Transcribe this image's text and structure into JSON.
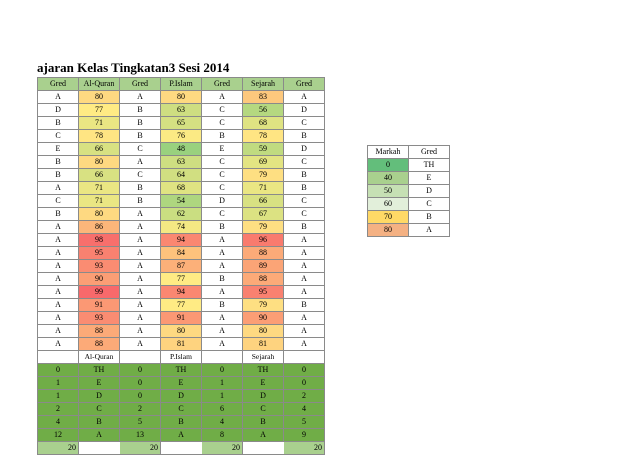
{
  "sheet": {
    "title": "ajaran Kelas Tingkatan3 Sesi 2014",
    "headers": [
      "Gred",
      "Al-Quran",
      "Gred",
      "P.Islam",
      "Gred",
      "Sejarah",
      "Gred"
    ],
    "rows": [
      [
        "A",
        "80",
        "A",
        "80",
        "A",
        "83",
        "A"
      ],
      [
        "D",
        "77",
        "B",
        "63",
        "C",
        "56",
        "D"
      ],
      [
        "B",
        "71",
        "B",
        "65",
        "C",
        "68",
        "C"
      ],
      [
        "C",
        "78",
        "B",
        "76",
        "B",
        "78",
        "B"
      ],
      [
        "E",
        "66",
        "C",
        "48",
        "E",
        "59",
        "D"
      ],
      [
        "B",
        "80",
        "A",
        "63",
        "C",
        "69",
        "C"
      ],
      [
        "B",
        "66",
        "C",
        "64",
        "C",
        "79",
        "B"
      ],
      [
        "A",
        "71",
        "B",
        "68",
        "C",
        "71",
        "B"
      ],
      [
        "C",
        "71",
        "B",
        "54",
        "D",
        "66",
        "C"
      ],
      [
        "B",
        "80",
        "A",
        "62",
        "C",
        "67",
        "C"
      ],
      [
        "A",
        "86",
        "A",
        "74",
        "B",
        "79",
        "B"
      ],
      [
        "A",
        "98",
        "A",
        "94",
        "A",
        "96",
        "A"
      ],
      [
        "A",
        "95",
        "A",
        "84",
        "A",
        "88",
        "A"
      ],
      [
        "A",
        "93",
        "A",
        "87",
        "A",
        "89",
        "A"
      ],
      [
        "A",
        "90",
        "A",
        "77",
        "B",
        "88",
        "A"
      ],
      [
        "A",
        "99",
        "A",
        "94",
        "A",
        "95",
        "A"
      ],
      [
        "A",
        "91",
        "A",
        "77",
        "B",
        "79",
        "B"
      ],
      [
        "A",
        "93",
        "A",
        "91",
        "A",
        "90",
        "A"
      ],
      [
        "A",
        "88",
        "A",
        "80",
        "A",
        "80",
        "A"
      ],
      [
        "A",
        "88",
        "A",
        "81",
        "A",
        "81",
        "A"
      ]
    ],
    "summary_labels": [
      "",
      "Al-Quran",
      "",
      "P.Islam",
      "",
      "Sejarah",
      ""
    ],
    "summary_rows": [
      [
        "0",
        "TH",
        "0",
        "TH",
        "0",
        "TH",
        "0"
      ],
      [
        "1",
        "E",
        "0",
        "E",
        "1",
        "E",
        "0"
      ],
      [
        "1",
        "D",
        "0",
        "D",
        "1",
        "D",
        "2"
      ],
      [
        "2",
        "C",
        "2",
        "C",
        "6",
        "C",
        "4"
      ],
      [
        "4",
        "B",
        "5",
        "B",
        "4",
        "B",
        "5"
      ],
      [
        "12",
        "A",
        "13",
        "A",
        "8",
        "A",
        "9"
      ]
    ],
    "totals": [
      "20",
      "",
      "20",
      "",
      "20",
      "",
      "20"
    ]
  },
  "legend": {
    "headers": [
      "Markah",
      "Gred"
    ],
    "rows": [
      [
        "0",
        "TH"
      ],
      [
        "40",
        "E"
      ],
      [
        "50",
        "D"
      ],
      [
        "60",
        "C"
      ],
      [
        "70",
        "B"
      ],
      [
        "80",
        "A"
      ]
    ]
  },
  "colors": {
    "header_fill": "#a9d08e",
    "summary_fill": "#70ad47",
    "totals_fill": "#a9d08e",
    "legend_0": "#63be7b",
    "legend_40": "#a9d08e",
    "legend_50": "#c6e0b4",
    "legend_60": "#e2efda",
    "legend_70": "#ffd966",
    "legend_80": "#f4b183"
  }
}
